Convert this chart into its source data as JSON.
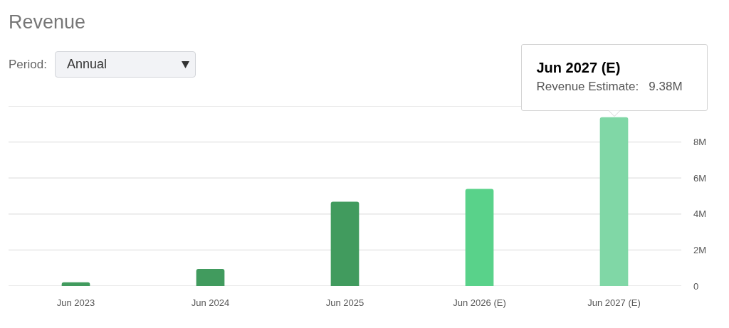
{
  "chart_data": {
    "type": "bar",
    "title": "Revenue",
    "categories": [
      "Jun 2023",
      "Jun 2024",
      "Jun 2025",
      "Jun 2026 (E)",
      "Jun 2027 (E)"
    ],
    "values": [
      0.21,
      0.95,
      4.68,
      5.4,
      9.38
    ],
    "colors": [
      "#419b5e",
      "#419b5e",
      "#419b5e",
      "#59d28a",
      "#80d7a6"
    ],
    "ylim": [
      0,
      10
    ],
    "yticks": [
      0,
      {
        "value": 2,
        "label": "2M"
      },
      {
        "value": 4,
        "label": "4M"
      },
      {
        "value": 6,
        "label": "6M"
      },
      {
        "value": 8,
        "label": "8M"
      },
      {
        "value": 10,
        "label": null
      }
    ],
    "grid": "y",
    "annotations": [
      "Period:",
      "Annual",
      {
        "text": "Jun 2027 (E)\nRevenue Estimate:   9.38M",
        "x": "Jun 2027 (E)",
        "y": 9.38
      }
    ]
  }
}
